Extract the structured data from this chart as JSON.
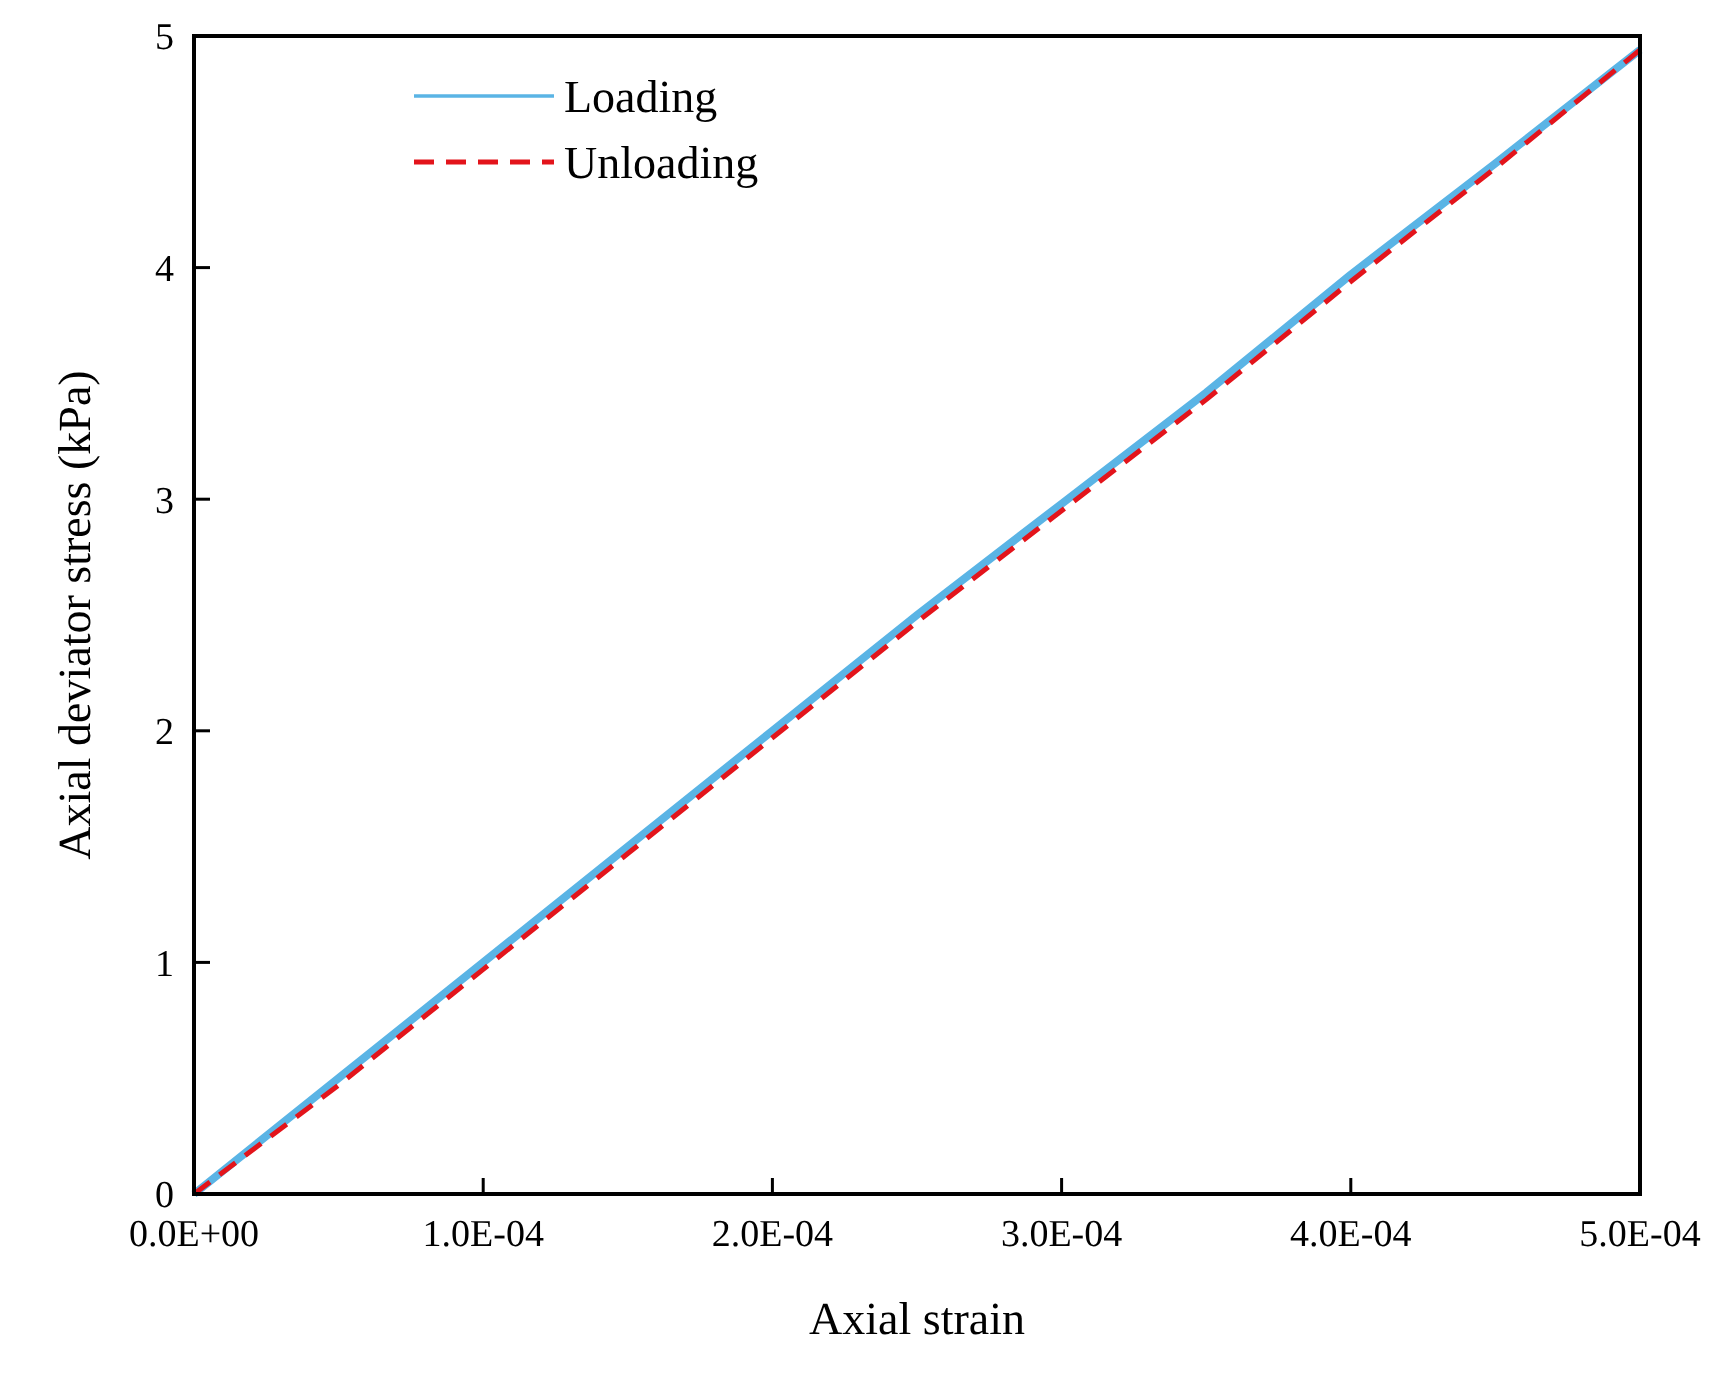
{
  "chart_data": {
    "type": "line",
    "xlabel": "Axial strain",
    "ylabel": "Axial deviator stress (kPa)",
    "xlim": [
      0,
      0.0005
    ],
    "ylim": [
      0,
      5
    ],
    "xticks": [
      {
        "value": 0,
        "label": "0.0E+00"
      },
      {
        "value": 0.0001,
        "label": "1.0E-04"
      },
      {
        "value": 0.0002,
        "label": "2.0E-04"
      },
      {
        "value": 0.0003,
        "label": "3.0E-04"
      },
      {
        "value": 0.0004,
        "label": "4.0E-04"
      },
      {
        "value": 0.0005,
        "label": "5.0E-04"
      }
    ],
    "yticks": [
      0,
      1,
      2,
      3,
      4,
      5
    ],
    "grid": false,
    "legend": "top left",
    "x": [
      0,
      5e-05,
      0.0001,
      0.00015,
      0.0002,
      0.00025,
      0.0003,
      0.00035,
      0.0004,
      0.00045,
      0.0005
    ],
    "series": [
      {
        "name": "Loading",
        "color": "#5ab4e5",
        "line_style": "solid",
        "values": [
          0,
          0.5,
          1.0,
          1.5,
          2.0,
          2.5,
          2.98,
          3.46,
          3.97,
          4.45,
          4.94
        ]
      },
      {
        "name": "Unloading",
        "color": "#e3141b",
        "line_style": "dashed",
        "values": [
          0,
          0.47,
          0.97,
          1.47,
          1.97,
          2.47,
          2.95,
          3.43,
          3.94,
          4.43,
          4.94
        ]
      }
    ]
  }
}
